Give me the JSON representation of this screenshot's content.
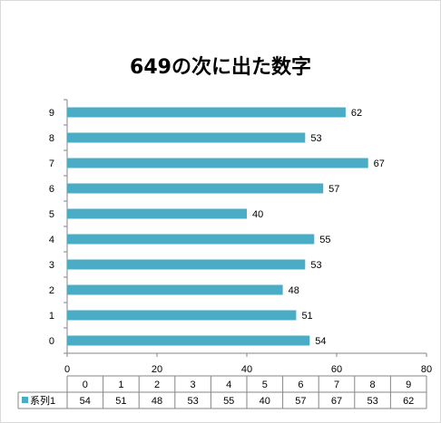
{
  "chart_data": {
    "type": "bar",
    "orientation": "horizontal",
    "title": "649の次に出た数字",
    "categories": [
      "0",
      "1",
      "2",
      "3",
      "4",
      "5",
      "6",
      "7",
      "8",
      "9"
    ],
    "series": [
      {
        "name": "系列1",
        "values": [
          54,
          51,
          48,
          53,
          55,
          40,
          57,
          67,
          53,
          62
        ],
        "color": "#4bacc6"
      }
    ],
    "xlim": [
      0,
      80
    ],
    "xticks": [
      "0",
      "20",
      "40",
      "60",
      "80"
    ],
    "grid": false,
    "data_labels": true,
    "data_table": true,
    "legend": "data-table"
  }
}
